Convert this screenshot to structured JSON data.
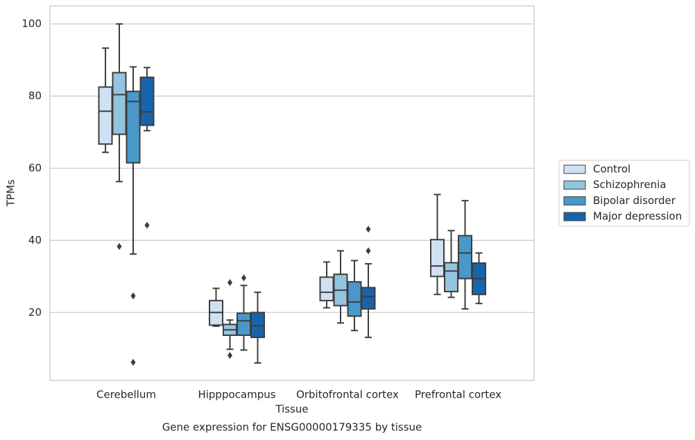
{
  "chart_data": {
    "type": "box",
    "title": "Gene expression for ENSG00000179335 by tissue",
    "xlabel": "Tissue",
    "ylabel": "TPMs",
    "categories": [
      "Cerebellum",
      "Hipppocampus",
      "Orbitofrontal cortex",
      "Prefrontal cortex"
    ],
    "ylim": [
      1.2,
      105
    ],
    "yticks": [
      20,
      40,
      60,
      80,
      100
    ],
    "grid": true,
    "legend": "right",
    "series": [
      {
        "name": "Control",
        "color": "#cfe1f2",
        "boxes": [
          {
            "min": 64.4,
            "q1": 66.7,
            "median": 75.8,
            "q3": 82.5,
            "max": 93.3,
            "outliers": []
          },
          {
            "min": 16.2,
            "q1": 16.5,
            "median": 20,
            "q3": 23.3,
            "max": 26.7,
            "outliers": []
          },
          {
            "min": 21.3,
            "q1": 23.3,
            "median": 25.6,
            "q3": 29.8,
            "max": 34,
            "outliers": []
          },
          {
            "min": 25,
            "q1": 30,
            "median": 32.9,
            "q3": 40.2,
            "max": 52.7,
            "outliers": []
          }
        ]
      },
      {
        "name": "Schizophrenia",
        "color": "#93c4de",
        "boxes": [
          {
            "min": 56.3,
            "q1": 69.4,
            "median": 80.4,
            "q3": 86.5,
            "max": 100,
            "outliers": [
              38.3
            ]
          },
          {
            "min": 9.8,
            "q1": 13.7,
            "median": 15.2,
            "q3": 16.7,
            "max": 17.9,
            "outliers": [
              28.3,
              8.1
            ]
          },
          {
            "min": 17.1,
            "q1": 21.9,
            "median": 26.2,
            "q3": 30.6,
            "max": 37.1,
            "outliers": []
          },
          {
            "min": 24.2,
            "q1": 25.8,
            "median": 31.5,
            "q3": 33.8,
            "max": 42.7,
            "outliers": []
          }
        ]
      },
      {
        "name": "Bipolar disorder",
        "color": "#4a98c9",
        "boxes": [
          {
            "min": 36.2,
            "q1": 61.5,
            "median": 78.5,
            "q3": 81.3,
            "max": 88.1,
            "outliers": [
              24.6,
              6.2
            ]
          },
          {
            "min": 9.6,
            "q1": 13.7,
            "median": 17.7,
            "q3": 19.8,
            "max": 27.5,
            "outliers": [
              29.6
            ]
          },
          {
            "min": 15,
            "q1": 19,
            "median": 22.9,
            "q3": 28.5,
            "max": 34.4,
            "outliers": []
          },
          {
            "min": 21,
            "q1": 29.4,
            "median": 36.5,
            "q3": 41.3,
            "max": 51,
            "outliers": []
          }
        ]
      },
      {
        "name": "Major depression",
        "color": "#1764ab",
        "boxes": [
          {
            "min": 70.4,
            "q1": 71.9,
            "median": 75.6,
            "q3": 85.2,
            "max": 87.9,
            "outliers": [
              44.2
            ]
          },
          {
            "min": 6,
            "q1": 13.1,
            "median": 16.3,
            "q3": 20,
            "max": 25.6,
            "outliers": []
          },
          {
            "min": 13.1,
            "q1": 21,
            "median": 24.4,
            "q3": 26.9,
            "max": 33.5,
            "outliers": [
              43.1,
              37.1
            ]
          },
          {
            "min": 22.5,
            "q1": 25,
            "median": 29.4,
            "q3": 33.7,
            "max": 36.5,
            "outliers": []
          }
        ]
      }
    ]
  }
}
